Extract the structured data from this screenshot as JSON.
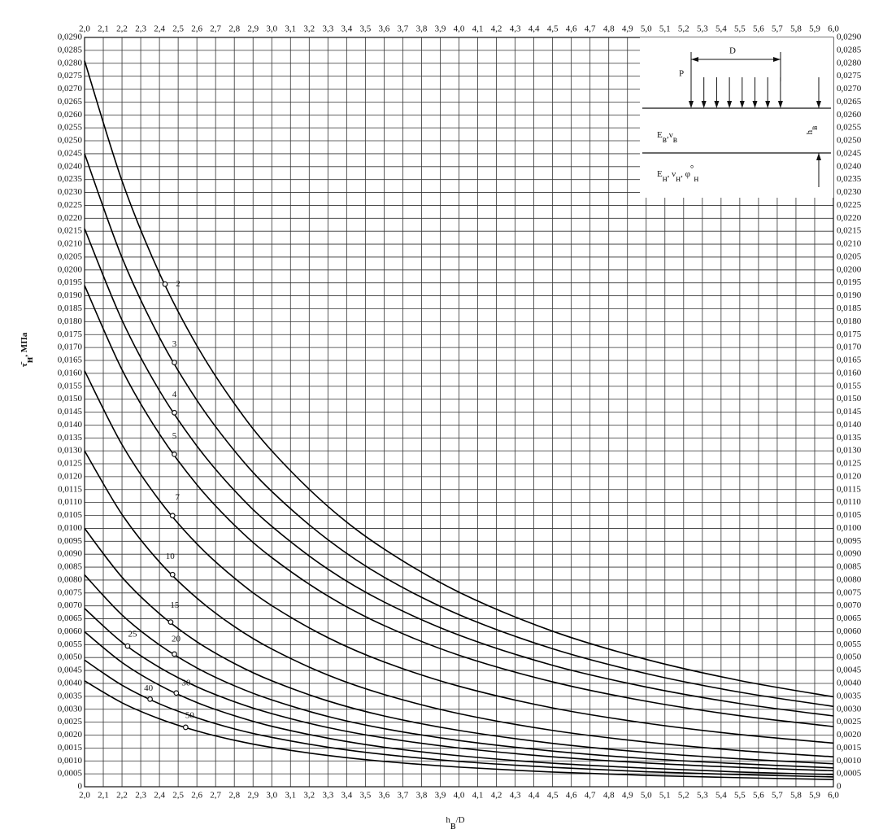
{
  "chart_data": {
    "type": "line",
    "x_label": [
      {
        "t": "h"
      },
      {
        "t": "в",
        "s": "sub"
      },
      {
        "t": "/D"
      }
    ],
    "y_label": [
      {
        "t": "τ̄"
      },
      {
        "t": "н",
        "s": "sub"
      },
      {
        "t": ", МПа"
      }
    ],
    "x": [
      2.0,
      2.2,
      2.4,
      2.6,
      2.8,
      3.0,
      3.3,
      3.6,
      4.0,
      4.5,
      5.0,
      5.5,
      6.0
    ],
    "series": [
      {
        "name": "2",
        "color": "#000000",
        "values": [
          0.0281,
          0.02345,
          0.01987,
          0.01707,
          0.01483,
          0.013,
          0.01085,
          0.0092,
          0.00753,
          0.00602,
          0.00493,
          0.00411,
          0.00348
        ]
      },
      {
        "name": "3",
        "color": "#000000",
        "values": [
          0.0245,
          0.02048,
          0.01739,
          0.01496,
          0.01301,
          0.01143,
          0.00956,
          0.00811,
          0.00666,
          0.00534,
          0.00438,
          0.00366,
          0.00311
        ]
      },
      {
        "name": "4",
        "color": "#000000",
        "values": [
          0.0216,
          0.01806,
          0.01533,
          0.01319,
          0.01147,
          0.01008,
          0.00842,
          0.00715,
          0.00587,
          0.0047,
          0.00386,
          0.00322,
          0.00274
        ]
      },
      {
        "name": "5",
        "color": "#000000",
        "values": [
          0.0194,
          0.01614,
          0.01365,
          0.01169,
          0.01013,
          0.00887,
          0.00738,
          0.00624,
          0.00509,
          0.00406,
          0.00331,
          0.00275,
          0.00233
        ]
      },
      {
        "name": "7",
        "color": "#000000",
        "values": [
          0.0161,
          0.01324,
          0.01108,
          0.0094,
          0.00808,
          0.00701,
          0.00577,
          0.00483,
          0.00389,
          0.00305,
          0.00246,
          0.00202,
          0.00169
        ]
      },
      {
        "name": "10",
        "color": "#000000",
        "values": [
          0.013,
          0.01054,
          0.0087,
          0.0073,
          0.0062,
          0.00533,
          0.00432,
          0.00357,
          0.00283,
          0.00218,
          0.00173,
          0.0014,
          0.00116
        ]
      },
      {
        "name": "15",
        "color": "#000000",
        "values": [
          0.01,
          0.00811,
          0.0067,
          0.00561,
          0.00477,
          0.0041,
          0.00332,
          0.00274,
          0.00218,
          0.00168,
          0.00133,
          0.00108,
          0.00089
        ]
      },
      {
        "name": "20",
        "color": "#000000",
        "values": [
          0.0082,
          0.00665,
          0.00549,
          0.0046,
          0.00391,
          0.00336,
          0.00272,
          0.00225,
          0.00179,
          0.00138,
          0.00109,
          0.00089,
          0.00073
        ]
      },
      {
        "name": "25",
        "color": "#000000",
        "values": [
          0.0069,
          0.00559,
          0.00462,
          0.00387,
          0.00329,
          0.00283,
          0.00229,
          0.00189,
          0.0015,
          0.00116,
          0.00092,
          0.00075,
          0.00062
        ]
      },
      {
        "name": "30",
        "color": "#000000",
        "values": [
          0.006,
          0.00481,
          0.00393,
          0.00326,
          0.00275,
          0.00234,
          0.00188,
          0.00153,
          0.0012,
          0.00091,
          0.00072,
          0.00057,
          0.00047
        ]
      },
      {
        "name": "40",
        "color": "#000000",
        "values": [
          0.0049,
          0.00393,
          0.00321,
          0.00267,
          0.00224,
          0.00191,
          0.00153,
          0.00125,
          0.00098,
          0.00075,
          0.00058,
          0.00047,
          0.00038
        ]
      },
      {
        "name": "50",
        "color": "#000000",
        "values": [
          0.0041,
          0.00325,
          0.00263,
          0.00216,
          0.0018,
          0.00152,
          0.00121,
          0.00098,
          0.00076,
          0.00057,
          0.00044,
          0.00035,
          0.00028
        ]
      }
    ],
    "xlim": [
      2.0,
      6.0
    ],
    "ylim": [
      0,
      0.029
    ],
    "xticks": [
      {
        "value": 2.0,
        "label": "2,0"
      },
      {
        "value": 2.1,
        "label": "2,1"
      },
      {
        "value": 2.2,
        "label": "2,2"
      },
      {
        "value": 2.3,
        "label": "2,3"
      },
      {
        "value": 2.4,
        "label": "2,4"
      },
      {
        "value": 2.5,
        "label": "2,5"
      },
      {
        "value": 2.6,
        "label": "2,6"
      },
      {
        "value": 2.7,
        "label": "2,7"
      },
      {
        "value": 2.8,
        "label": "2,8"
      },
      {
        "value": 2.9,
        "label": "2,9"
      },
      {
        "value": 3.0,
        "label": "3,0"
      },
      {
        "value": 3.1,
        "label": "3,1"
      },
      {
        "value": 3.2,
        "label": "3,2"
      },
      {
        "value": 3.3,
        "label": "3,3"
      },
      {
        "value": 3.4,
        "label": "3,4"
      },
      {
        "value": 3.5,
        "label": "3,5"
      },
      {
        "value": 3.6,
        "label": "3,6"
      },
      {
        "value": 3.7,
        "label": "3,7"
      },
      {
        "value": 3.8,
        "label": "3,8"
      },
      {
        "value": 3.9,
        "label": "3,9"
      },
      {
        "value": 4.0,
        "label": "4,0"
      },
      {
        "value": 4.1,
        "label": "4,1"
      },
      {
        "value": 4.2,
        "label": "4,2"
      },
      {
        "value": 4.3,
        "label": "4,3"
      },
      {
        "value": 4.4,
        "label": "4,4"
      },
      {
        "value": 4.5,
        "label": "4,5"
      },
      {
        "value": 4.6,
        "label": "4,6"
      },
      {
        "value": 4.7,
        "label": "4,7"
      },
      {
        "value": 4.8,
        "label": "4,8"
      },
      {
        "value": 4.9,
        "label": "4,9"
      },
      {
        "value": 5.0,
        "label": "5,0"
      },
      {
        "value": 5.1,
        "label": "5,1"
      },
      {
        "value": 5.2,
        "label": "5,2"
      },
      {
        "value": 5.3,
        "label": "5,3"
      },
      {
        "value": 5.4,
        "label": "5,4"
      },
      {
        "value": 5.5,
        "label": "5,5"
      },
      {
        "value": 5.6,
        "label": "5,6"
      },
      {
        "value": 5.7,
        "label": "5,7"
      },
      {
        "value": 5.8,
        "label": "5,8"
      },
      {
        "value": 5.9,
        "label": "5,9"
      },
      {
        "value": 6.0,
        "label": "6,0"
      }
    ],
    "yticks": [
      0,
      {
        "value": 0.0005,
        "label": "0,0005"
      },
      {
        "value": 0.001,
        "label": "0,0010"
      },
      {
        "value": 0.0015,
        "label": "0,0015"
      },
      {
        "value": 0.002,
        "label": "0,0020"
      },
      {
        "value": 0.0025,
        "label": "0,0025"
      },
      {
        "value": 0.003,
        "label": "0,0030"
      },
      {
        "value": 0.0035,
        "label": "0,0035"
      },
      {
        "value": 0.004,
        "label": "0,0040"
      },
      {
        "value": 0.0045,
        "label": "0,0045"
      },
      {
        "value": 0.005,
        "label": "0,0050"
      },
      {
        "value": 0.0055,
        "label": "0,0055"
      },
      {
        "value": 0.006,
        "label": "0,0060"
      },
      {
        "value": 0.0065,
        "label": "0,0065"
      },
      {
        "value": 0.007,
        "label": "0,0070"
      },
      {
        "value": 0.0075,
        "label": "0,0075"
      },
      {
        "value": 0.008,
        "label": "0,0080"
      },
      {
        "value": 0.0085,
        "label": "0,0085"
      },
      {
        "value": 0.009,
        "label": "0,0090"
      },
      {
        "value": 0.0095,
        "label": "0,0095"
      },
      {
        "value": 0.01,
        "label": "0,0100"
      },
      {
        "value": 0.0105,
        "label": "0,0105"
      },
      {
        "value": 0.011,
        "label": "0,0110"
      },
      {
        "value": 0.0115,
        "label": "0,0115"
      },
      {
        "value": 0.012,
        "label": "0,0120"
      },
      {
        "value": 0.0125,
        "label": "0,0125"
      },
      {
        "value": 0.013,
        "label": "0,0130"
      },
      {
        "value": 0.0135,
        "label": "0,0135"
      },
      {
        "value": 0.014,
        "label": "0,0140"
      },
      {
        "value": 0.0145,
        "label": "0,0145"
      },
      {
        "value": 0.015,
        "label": "0,0150"
      },
      {
        "value": 0.0155,
        "label": "0,0155"
      },
      {
        "value": 0.016,
        "label": "0,0160"
      },
      {
        "value": 0.0165,
        "label": "0,0165"
      },
      {
        "value": 0.017,
        "label": "0,0170"
      },
      {
        "value": 0.0175,
        "label": "0,0175"
      },
      {
        "value": 0.018,
        "label": "0,0180"
      },
      {
        "value": 0.0185,
        "label": "0,0185"
      },
      {
        "value": 0.019,
        "label": "0,0190"
      },
      {
        "value": 0.0195,
        "label": "0,0195"
      },
      {
        "value": 0.02,
        "label": "0,0200"
      },
      {
        "value": 0.0205,
        "label": "0,0205"
      },
      {
        "value": 0.021,
        "label": "0,0210"
      },
      {
        "value": 0.0215,
        "label": "0,0215"
      },
      {
        "value": 0.022,
        "label": "0,0220"
      },
      {
        "value": 0.0225,
        "label": "0,0225"
      },
      {
        "value": 0.023,
        "label": "0,0230"
      },
      {
        "value": 0.0235,
        "label": "0,0235"
      },
      {
        "value": 0.024,
        "label": "0,0240"
      },
      {
        "value": 0.0245,
        "label": "0,0245"
      },
      {
        "value": 0.025,
        "label": "0,0250"
      },
      {
        "value": 0.0255,
        "label": "0,0255"
      },
      {
        "value": 0.026,
        "label": "0,0260"
      },
      {
        "value": 0.0265,
        "label": "0,0265"
      },
      {
        "value": 0.027,
        "label": "0,0270"
      },
      {
        "value": 0.0275,
        "label": "0,0275"
      },
      {
        "value": 0.028,
        "label": "0,0280"
      },
      {
        "value": 0.0285,
        "label": "0,0285"
      },
      {
        "value": 0.029,
        "label": "0,0290"
      }
    ],
    "grid": true,
    "inset": {
      "span": "D",
      "load": "P",
      "upper_layer": [
        {
          "t": "E"
        },
        {
          "t": "в",
          "s": "sub"
        },
        {
          "t": ",ν"
        },
        {
          "t": "в",
          "s": "sub"
        }
      ],
      "lower_layer": [
        {
          "t": "E"
        },
        {
          "t": "н",
          "s": "sub"
        },
        {
          "t": ", ν"
        },
        {
          "t": "н",
          "s": "sub"
        },
        {
          "t": ", φ"
        },
        {
          "t": "°",
          "s": "sup"
        },
        {
          "t": "н",
          "s": "sub"
        }
      ],
      "thickness": [
        {
          "t": "h"
        },
        {
          "t": "в",
          "s": "sub"
        }
      ]
    }
  }
}
